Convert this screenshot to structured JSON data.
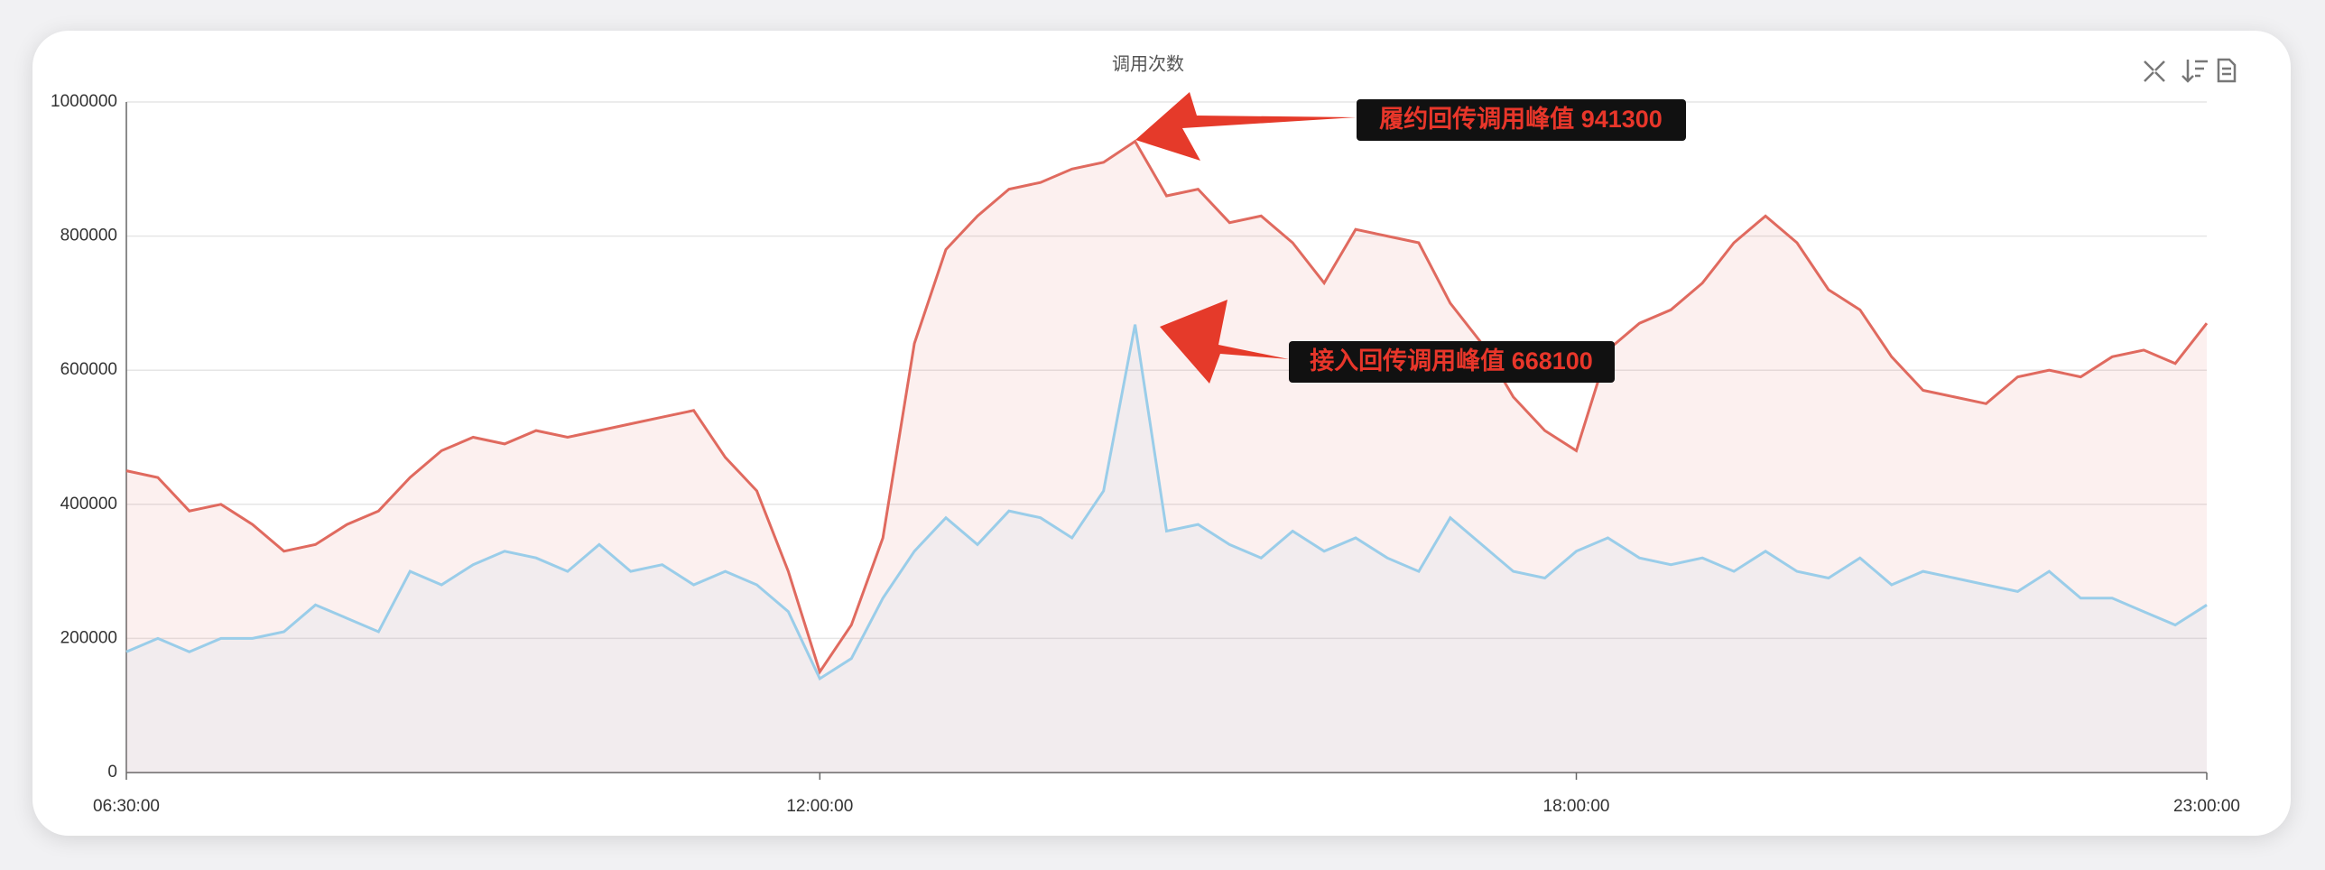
{
  "chart_data": {
    "type": "line",
    "title": "调用次数",
    "x": [
      "06:30:00",
      "06:45:00",
      "07:00:00",
      "07:15:00",
      "07:30:00",
      "07:45:00",
      "08:00:00",
      "08:15:00",
      "08:30:00",
      "08:45:00",
      "09:00:00",
      "09:15:00",
      "09:30:00",
      "09:45:00",
      "10:00:00",
      "10:15:00",
      "10:30:00",
      "10:45:00",
      "11:00:00",
      "11:15:00",
      "11:30:00",
      "11:45:00",
      "12:00:00",
      "12:15:00",
      "12:30:00",
      "12:45:00",
      "13:00:00",
      "13:15:00",
      "13:30:00",
      "13:45:00",
      "14:00:00",
      "14:15:00",
      "14:30:00",
      "14:45:00",
      "15:00:00",
      "15:15:00",
      "15:30:00",
      "15:45:00",
      "16:00:00",
      "16:15:00",
      "16:30:00",
      "16:45:00",
      "17:00:00",
      "17:15:00",
      "17:30:00",
      "17:45:00",
      "18:00:00",
      "18:15:00",
      "18:30:00",
      "18:45:00",
      "19:00:00",
      "19:15:00",
      "19:30:00",
      "19:45:00",
      "20:00:00",
      "20:15:00",
      "20:30:00",
      "20:45:00",
      "21:00:00",
      "21:15:00",
      "21:30:00",
      "21:45:00",
      "22:00:00",
      "22:15:00",
      "22:30:00",
      "22:45:00",
      "23:00:00"
    ],
    "series": [
      {
        "color": "#e06a5f",
        "values": [
          450000,
          440000,
          390000,
          400000,
          370000,
          330000,
          340000,
          370000,
          390000,
          440000,
          480000,
          500000,
          490000,
          510000,
          500000,
          510000,
          520000,
          530000,
          540000,
          470000,
          420000,
          300000,
          150000,
          220000,
          350000,
          640000,
          780000,
          830000,
          870000,
          880000,
          900000,
          910000,
          941300,
          860000,
          870000,
          820000,
          830000,
          790000,
          730000,
          810000,
          800000,
          790000,
          700000,
          640000,
          560000,
          510000,
          480000,
          630000,
          670000,
          690000,
          730000,
          790000,
          830000,
          790000,
          720000,
          690000,
          620000,
          570000,
          560000,
          550000,
          590000,
          600000,
          590000,
          620000,
          630000,
          610000,
          670000
        ]
      },
      {
        "color": "#9acde9",
        "values": [
          180000,
          200000,
          180000,
          200000,
          200000,
          210000,
          250000,
          230000,
          210000,
          300000,
          280000,
          310000,
          330000,
          320000,
          300000,
          340000,
          300000,
          310000,
          280000,
          300000,
          280000,
          240000,
          140000,
          170000,
          260000,
          330000,
          380000,
          340000,
          390000,
          380000,
          350000,
          420000,
          668100,
          360000,
          370000,
          340000,
          320000,
          360000,
          330000,
          350000,
          320000,
          300000,
          380000,
          340000,
          300000,
          290000,
          330000,
          350000,
          320000,
          310000,
          320000,
          300000,
          330000,
          300000,
          290000,
          320000,
          280000,
          300000,
          290000,
          280000,
          270000,
          300000,
          260000,
          260000,
          240000,
          220000,
          250000
        ]
      }
    ],
    "xticks": [
      "06:30:00",
      "12:00:00",
      "18:00:00",
      "23:00:00"
    ],
    "ylim": [
      0,
      1000000
    ],
    "yticks": [
      0,
      200000,
      400000,
      600000,
      800000,
      1000000
    ],
    "grid": true,
    "annotations": [
      "履约回传调用峰值 941300",
      "接入回传调用峰值 668100"
    ]
  }
}
